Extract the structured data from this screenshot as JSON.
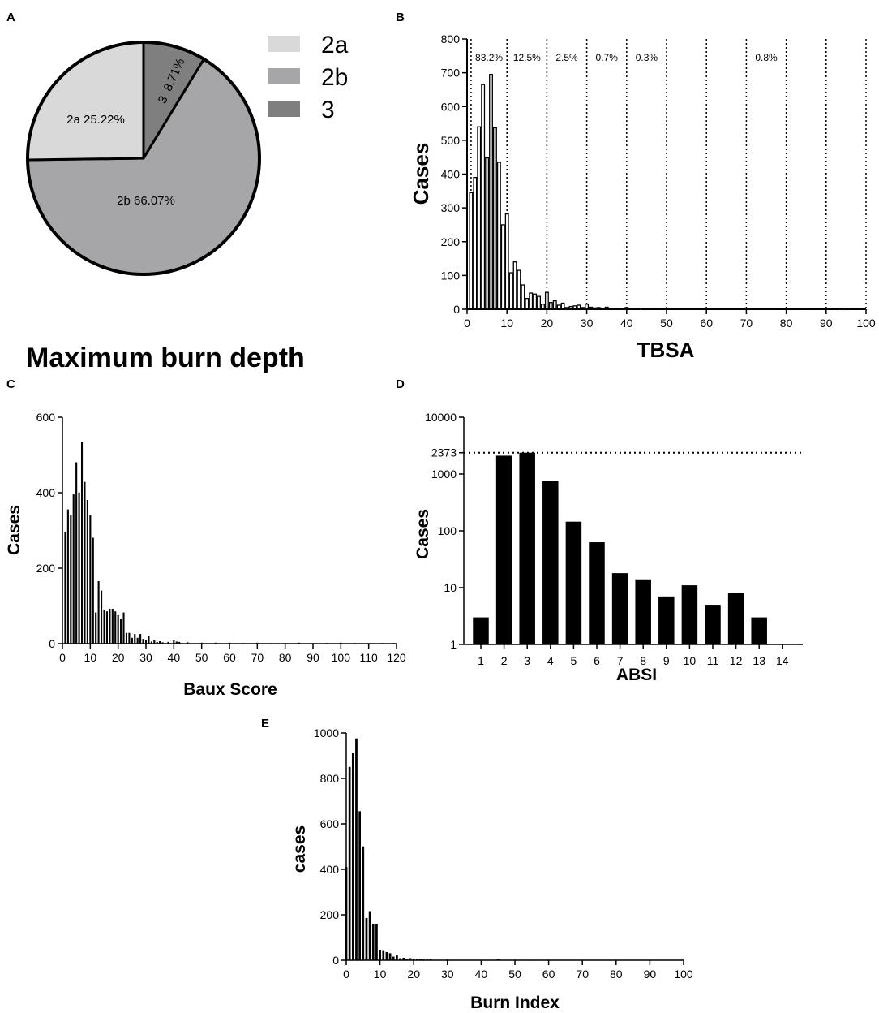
{
  "chart_data": [
    {
      "panel": "A",
      "type": "pie",
      "title": "Maximum burn depth",
      "slices": [
        {
          "label": "2a",
          "value": 25.22,
          "text": "2a 25.22%",
          "color": "#d9d9d9"
        },
        {
          "label": "2b",
          "value": 66.07,
          "text": "2b 66.07%",
          "color": "#a6a6a8"
        },
        {
          "label": "3",
          "value": 8.71,
          "text": "3  8.71%",
          "color": "#7f7f7f"
        }
      ],
      "legend": [
        "2a",
        "2b",
        "3"
      ],
      "legend_position": "top-right"
    },
    {
      "panel": "B",
      "type": "bar",
      "xlabel": "TBSA",
      "ylabel": "Cases",
      "xlim": [
        0,
        100
      ],
      "ylim": [
        0,
        800
      ],
      "xticks": [
        0,
        10,
        20,
        30,
        40,
        50,
        60,
        70,
        80,
        90,
        100
      ],
      "yticks": [
        0,
        100,
        200,
        300,
        400,
        500,
        600,
        700,
        800
      ],
      "bar_fill": "#ffffff",
      "x": [
        1,
        2,
        3,
        4,
        5,
        6,
        7,
        8,
        9,
        10,
        11,
        12,
        13,
        14,
        15,
        16,
        17,
        18,
        19,
        20,
        21,
        22,
        23,
        24,
        25,
        26,
        27,
        28,
        29,
        30,
        31,
        32,
        33,
        34,
        35,
        36,
        38,
        40,
        42,
        44,
        45,
        50,
        60,
        70,
        80,
        85,
        90,
        94,
        99
      ],
      "values": [
        345,
        390,
        540,
        665,
        448,
        695,
        537,
        435,
        250,
        282,
        108,
        140,
        115,
        72,
        32,
        48,
        45,
        38,
        15,
        50,
        20,
        25,
        12,
        18,
        5,
        8,
        10,
        12,
        5,
        15,
        6,
        4,
        5,
        3,
        6,
        2,
        3,
        5,
        2,
        3,
        2,
        2,
        1,
        2,
        1,
        1,
        1,
        3,
        1
      ],
      "vlines": [
        1,
        10,
        20,
        30,
        40,
        50,
        60,
        70,
        80,
        90,
        100
      ],
      "annotations": [
        {
          "text": "83.2%",
          "x": 5.5
        },
        {
          "text": "12.5%",
          "x": 15
        },
        {
          "text": "2.5%",
          "x": 25
        },
        {
          "text": "0.7%",
          "x": 35
        },
        {
          "text": "0.3%",
          "x": 45
        },
        {
          "text": "0.8%",
          "x": 75
        }
      ]
    },
    {
      "panel": "C",
      "type": "bar",
      "xlabel": "Baux Score",
      "ylabel": "Cases",
      "xlim": [
        0,
        120
      ],
      "ylim": [
        0,
        600
      ],
      "xticks": [
        0,
        10,
        20,
        30,
        40,
        50,
        60,
        70,
        80,
        90,
        100,
        110,
        120
      ],
      "yticks": [
        0,
        200,
        400,
        600
      ],
      "x": [
        1,
        2,
        3,
        4,
        5,
        6,
        7,
        8,
        9,
        10,
        11,
        12,
        13,
        14,
        15,
        16,
        17,
        18,
        19,
        20,
        21,
        22,
        23,
        24,
        25,
        26,
        27,
        28,
        29,
        30,
        31,
        32,
        33,
        34,
        35,
        36,
        38,
        40,
        41,
        42,
        45,
        50,
        55,
        60,
        65,
        70,
        75,
        80,
        85,
        90,
        95,
        100,
        105,
        110,
        115,
        119
      ],
      "values": [
        295,
        355,
        340,
        395,
        480,
        400,
        535,
        428,
        380,
        340,
        280,
        82,
        165,
        140,
        90,
        85,
        92,
        92,
        85,
        75,
        65,
        82,
        28,
        28,
        15,
        25,
        15,
        25,
        12,
        10,
        20,
        5,
        8,
        4,
        6,
        3,
        4,
        8,
        5,
        4,
        3,
        2,
        2,
        2,
        1,
        2,
        1,
        1,
        2,
        1,
        1,
        2,
        1,
        1,
        1,
        1
      ]
    },
    {
      "panel": "D",
      "type": "bar",
      "scale": "log",
      "xlabel": "ABSI",
      "ylabel": "Cases",
      "ylim": [
        1,
        10000
      ],
      "yticks": [
        1,
        10,
        100,
        1000,
        2373,
        10000
      ],
      "hline": 2373,
      "categories": [
        "1",
        "2",
        "3",
        "4",
        "5",
        "6",
        "7",
        "8",
        "9",
        "10",
        "11",
        "12",
        "13",
        "14"
      ],
      "values": [
        3,
        2100,
        2373,
        750,
        145,
        63,
        18,
        14,
        7,
        11,
        5,
        8,
        3,
        0
      ]
    },
    {
      "panel": "E",
      "type": "bar",
      "xlabel": "Burn Index",
      "ylabel": "cases",
      "xlim": [
        0,
        100
      ],
      "ylim": [
        0,
        1000
      ],
      "xticks": [
        0,
        10,
        20,
        30,
        40,
        50,
        60,
        70,
        80,
        90,
        100
      ],
      "yticks": [
        0,
        200,
        400,
        600,
        800,
        1000
      ],
      "x": [
        0,
        1,
        2,
        3,
        4,
        5,
        6,
        7,
        8,
        9,
        10,
        11,
        12,
        13,
        14,
        15,
        16,
        17,
        18,
        19,
        20,
        21,
        22,
        23,
        24,
        25,
        30,
        45,
        50,
        55,
        60
      ],
      "values": [
        410,
        850,
        910,
        975,
        655,
        500,
        185,
        215,
        160,
        160,
        45,
        40,
        35,
        30,
        15,
        20,
        8,
        10,
        5,
        8,
        6,
        4,
        3,
        2,
        2,
        3,
        2,
        3,
        1,
        1,
        1
      ]
    }
  ]
}
